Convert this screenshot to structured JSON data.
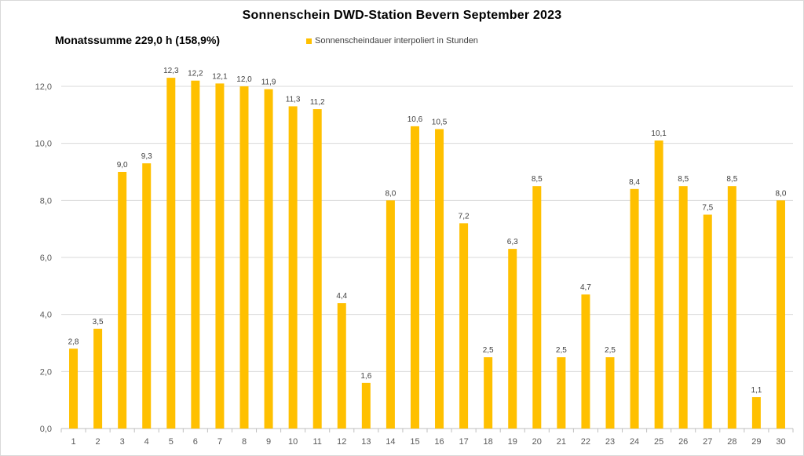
{
  "chart_data": {
    "type": "bar",
    "title": "Sonnenschein  DWD-Station  Bevern September 2023",
    "summary": "Monatssumme 229,0 h (158,9%)",
    "series": [
      {
        "name": "Sonnenscheindauer interpoliert in Stunden",
        "color": "#FFC000",
        "values": [
          2.8,
          3.5,
          9.0,
          9.3,
          12.3,
          12.2,
          12.1,
          12.0,
          11.9,
          11.3,
          11.2,
          4.4,
          1.6,
          8.0,
          10.6,
          10.5,
          7.2,
          2.5,
          6.3,
          8.5,
          2.5,
          4.7,
          2.5,
          8.4,
          10.1,
          8.5,
          7.5,
          8.5,
          1.1,
          8.0
        ]
      }
    ],
    "categories": [
      "1",
      "2",
      "3",
      "4",
      "5",
      "6",
      "7",
      "8",
      "9",
      "10",
      "11",
      "12",
      "13",
      "14",
      "15",
      "16",
      "17",
      "18",
      "19",
      "20",
      "21",
      "22",
      "23",
      "24",
      "25",
      "26",
      "27",
      "28",
      "29",
      "30"
    ],
    "ylim": [
      0,
      12
    ],
    "yticks": [
      0,
      2,
      4,
      6,
      8,
      10,
      12
    ],
    "ytick_labels": [
      "0,0",
      "2,0",
      "4,0",
      "6,0",
      "8,0",
      "10,0",
      "12,0"
    ],
    "data_labels": [
      "2,8",
      "3,5",
      "9,0",
      "9,3",
      "12,3",
      "12,2",
      "12,1",
      "12,0",
      "11,9",
      "11,3",
      "11,2",
      "4,4",
      "1,6",
      "8,0",
      "10,6",
      "10,5",
      "7,2",
      "2,5",
      "6,3",
      "8,5",
      "2,5",
      "4,7",
      "2,5",
      "8,4",
      "10,1",
      "8,5",
      "7,5",
      "8,5",
      "1,1",
      "8,0"
    ],
    "grid": true,
    "legend_position": "top-center"
  }
}
